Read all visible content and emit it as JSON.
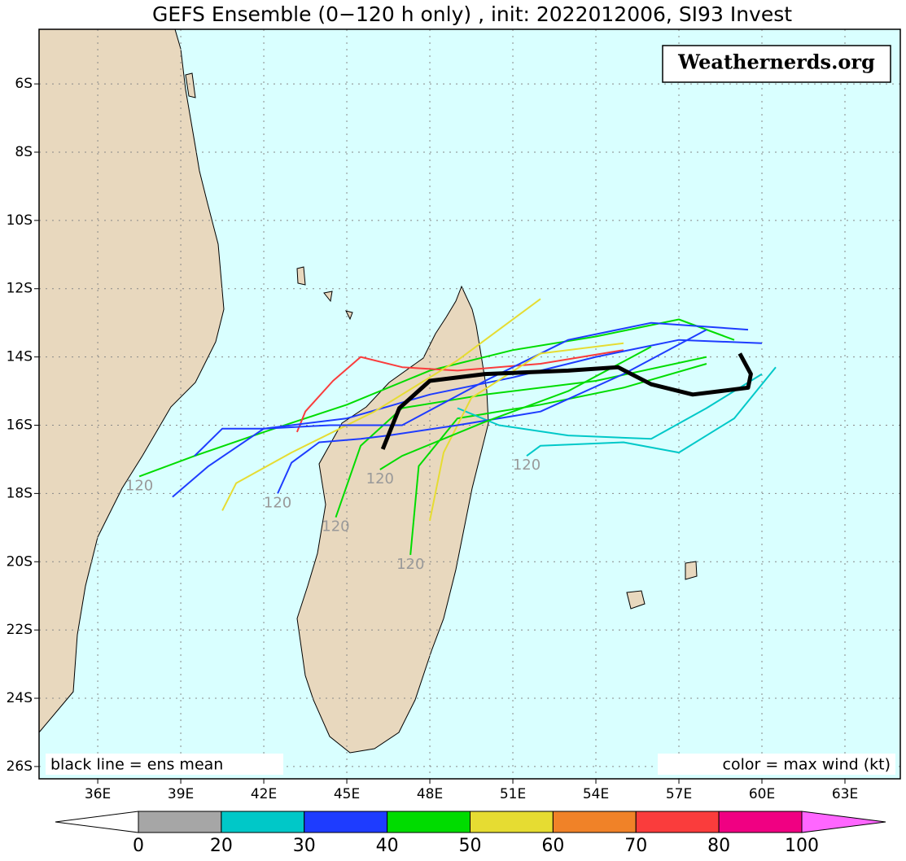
{
  "map": {
    "title": "GEFS Ensemble (0−120 h only) , init: 2022012006, SI93 Invest",
    "watermark": "Weathernerds.org",
    "legend_left": "black line = ens mean",
    "legend_right": "color = max wind (kt)",
    "lonlim": [
      33.88,
      65.0
    ],
    "latlim": [
      -26.36,
      -4.4
    ],
    "lon_ticks": [
      {
        "value": 36,
        "label": "36E"
      },
      {
        "value": 39,
        "label": "39E"
      },
      {
        "value": 42,
        "label": "42E"
      },
      {
        "value": 45,
        "label": "45E"
      },
      {
        "value": 48,
        "label": "48E"
      },
      {
        "value": 51,
        "label": "51E"
      },
      {
        "value": 54,
        "label": "54E"
      },
      {
        "value": 57,
        "label": "57E"
      },
      {
        "value": 60,
        "label": "60E"
      },
      {
        "value": 63,
        "label": "63E"
      }
    ],
    "lat_ticks": [
      {
        "value": -6,
        "label": "6S"
      },
      {
        "value": -8,
        "label": "8S"
      },
      {
        "value": -10,
        "label": "10S"
      },
      {
        "value": -12,
        "label": "12S"
      },
      {
        "value": -14,
        "label": "14S"
      },
      {
        "value": -16,
        "label": "16S"
      },
      {
        "value": -18,
        "label": "18S"
      },
      {
        "value": -20,
        "label": "20S"
      },
      {
        "value": -22,
        "label": "22S"
      },
      {
        "value": -24,
        "label": "24S"
      },
      {
        "value": -26,
        "label": "26S"
      }
    ],
    "grid": true,
    "mean_track": {
      "color": "#000000",
      "lon": [
        59.2,
        59.6,
        59.5,
        58.5,
        57.5,
        56.0,
        54.8,
        53.0,
        50.0,
        48.0,
        46.9,
        46.3
      ],
      "lat": [
        -13.9,
        -14.5,
        -14.9,
        -15.0,
        -15.1,
        -14.8,
        -14.3,
        -14.4,
        -14.5,
        -14.7,
        -15.5,
        -16.7
      ]
    },
    "tracks": [
      {
        "color": "#00dc00",
        "lon": [
          59,
          57,
          54,
          51,
          48,
          45,
          42,
          39.5,
          37.5
        ],
        "lat": [
          -13.5,
          -12.9,
          -13.4,
          -13.8,
          -14.4,
          -15.4,
          -16.2,
          -16.9,
          -17.5
        ],
        "end_label": 120
      },
      {
        "color": "#fa3c3c",
        "lon": [
          55,
          52,
          49,
          47,
          45.5,
          44.5,
          43.5,
          43.2
        ],
        "lat": [
          -13.8,
          -14.2,
          -14.4,
          -14.3,
          -14.0,
          -14.7,
          -15.6,
          -16.2
        ]
      },
      {
        "color": "#1e3cff",
        "lon": [
          60,
          57,
          54,
          51,
          48,
          45,
          42,
          40,
          38.7
        ],
        "lat": [
          -13.6,
          -13.5,
          -14,
          -14.6,
          -15.1,
          -15.8,
          -16.1,
          -17.2,
          -18.1
        ]
      },
      {
        "color": "#e6dc32",
        "lon": [
          52,
          49,
          46,
          43,
          41,
          40.5
        ],
        "lat": [
          -12.3,
          -14.1,
          -15.6,
          -16.8,
          -17.7,
          -18.5
        ]
      },
      {
        "color": "#00dc00",
        "lon": [
          58,
          54,
          50,
          47,
          45.5,
          44.6
        ],
        "lat": [
          -14,
          -14.7,
          -15.1,
          -15.5,
          -16.6,
          -18.7
        ],
        "end_label": 120
      },
      {
        "color": "#00dc00",
        "lon": [
          58,
          55,
          52,
          49,
          47.6,
          47.3
        ],
        "lat": [
          -14.2,
          -14.9,
          -15.4,
          -15.8,
          -17.2,
          -19.8
        ],
        "end_label": 120
      },
      {
        "color": "#00c8c8",
        "lon": [
          60,
          58,
          56,
          53,
          50.5,
          49
        ],
        "lat": [
          -14.5,
          -15.5,
          -16.4,
          -16.3,
          -16.0,
          -15.5
        ]
      },
      {
        "color": "#00c8c8",
        "lon": [
          60.5,
          59,
          57,
          55,
          52,
          51.5
        ],
        "lat": [
          -14.3,
          -15.8,
          -16.8,
          -16.5,
          -16.6,
          -16.9
        ],
        "end_label": 120
      },
      {
        "color": "#1e3cff",
        "lon": [
          59.5,
          56,
          53,
          50,
          47,
          44.4,
          42,
          40.5,
          39.5
        ],
        "lat": [
          -13.2,
          -13.0,
          -13.5,
          -14.7,
          -16.0,
          -16.0,
          -16.1,
          -16.1,
          -16.9
        ]
      },
      {
        "color": "#e6dc32",
        "lon": [
          55,
          52,
          49.5,
          48.5,
          48
        ],
        "lat": [
          -13.6,
          -13.9,
          -15.2,
          -16.8,
          -18.8
        ]
      },
      {
        "color": "#1e3cff",
        "lon": [
          58,
          55,
          52,
          49,
          46.5,
          45.5,
          44,
          43,
          42.5
        ],
        "lat": [
          -13.2,
          -14.5,
          -15.6,
          -16.0,
          -16.3,
          -16.4,
          -16.5,
          -17.1,
          -18.0
        ],
        "end_label": 120
      },
      {
        "color": "#00dc00",
        "lon": [
          56,
          53,
          50,
          47,
          46.2
        ],
        "lat": [
          -13.7,
          -15.0,
          -15.9,
          -16.9,
          -17.3
        ],
        "end_label": 120
      }
    ],
    "colorbar": {
      "ticks": [
        0,
        20,
        30,
        40,
        50,
        60,
        70,
        80,
        100
      ],
      "colors": [
        "#a6a6a6",
        "#00c8c8",
        "#1e3cff",
        "#00dc00",
        "#e6dc32",
        "#f08228",
        "#fa3c3c",
        "#f00082",
        "#ff66ff"
      ]
    }
  }
}
